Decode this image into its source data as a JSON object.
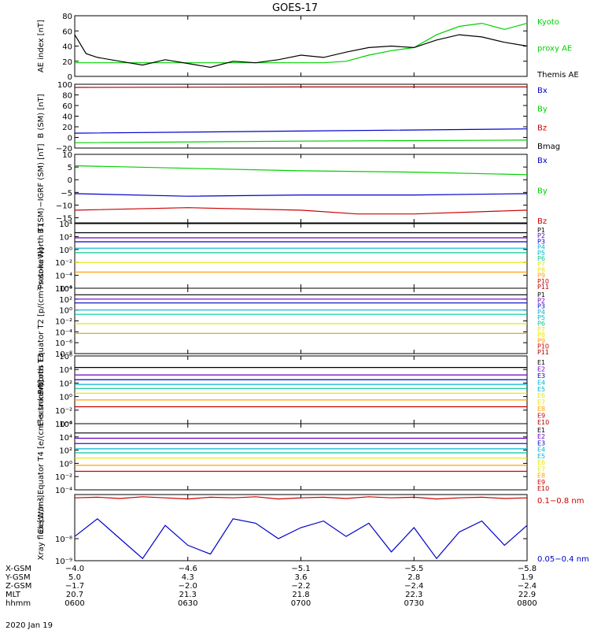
{
  "title": "GOES-17",
  "colors": {
    "black": "#000000",
    "green": "#00d000",
    "red": "#cc0000",
    "blue": "#0000cc",
    "purple": "#6a00c8",
    "cyan": "#00b4d0",
    "teal": "#00c890",
    "yellow": "#e6e600",
    "orange": "#ffa000",
    "darkred": "#aa0000"
  },
  "chart_data": [
    {
      "id": "ae",
      "type": "line",
      "ylabel": "AE index [nT]",
      "ylim": [
        0,
        80
      ],
      "yticks": [
        "0",
        "20",
        "40",
        "60",
        "80"
      ],
      "ytick_values": [
        0,
        20,
        40,
        60,
        80
      ],
      "series": [
        {
          "name": "Kyoto proxy AE",
          "color": "green",
          "x": [
            0,
            0.2,
            0.4,
            0.6,
            0.8,
            1.0,
            1.1,
            1.2,
            1.3,
            1.4,
            1.5,
            1.6,
            1.7,
            1.8,
            1.9,
            2.0
          ],
          "y": [
            18,
            18,
            18,
            18,
            18,
            18,
            18,
            20,
            28,
            34,
            38,
            55,
            66,
            70,
            62,
            70
          ]
        },
        {
          "name": "Themis AE",
          "color": "black",
          "x": [
            0,
            0.05,
            0.1,
            0.2,
            0.3,
            0.4,
            0.5,
            0.6,
            0.7,
            0.8,
            0.9,
            1.0,
            1.1,
            1.2,
            1.3,
            1.4,
            1.5,
            1.6,
            1.7,
            1.8,
            1.9,
            2.0
          ],
          "y": [
            55,
            30,
            25,
            20,
            15,
            22,
            17,
            12,
            20,
            18,
            22,
            28,
            25,
            32,
            38,
            40,
            38,
            48,
            55,
            52,
            45,
            40
          ]
        }
      ],
      "labels": [
        {
          "text": "Kyoto",
          "color": "green"
        },
        {
          "text": "proxy AE",
          "color": "green"
        },
        {
          "text": "Themis AE",
          "color": "black"
        }
      ]
    },
    {
      "id": "bsm",
      "type": "line",
      "ylabel": "B (SM) [nT]",
      "ylim": [
        -20,
        100
      ],
      "yticks": [
        "−20",
        "0",
        "20",
        "40",
        "60",
        "80",
        "100"
      ],
      "ytick_values": [
        -20,
        0,
        20,
        40,
        60,
        80,
        100
      ],
      "series": [
        {
          "name": "Bmag",
          "color": "darkred",
          "x": [
            0,
            1,
            2
          ],
          "y": [
            94,
            95,
            95
          ]
        },
        {
          "name": "Bx",
          "color": "blue",
          "x": [
            0,
            1,
            2
          ],
          "y": [
            8,
            12,
            16
          ]
        },
        {
          "name": "By",
          "color": "green",
          "x": [
            0,
            1,
            2
          ],
          "y": [
            -10,
            -7,
            -5
          ]
        }
      ],
      "labels": [
        {
          "text": "Bx",
          "color": "blue"
        },
        {
          "text": "By",
          "color": "green"
        },
        {
          "text": "Bz",
          "color": "red"
        },
        {
          "text": "Bmag",
          "color": "black"
        }
      ]
    },
    {
      "id": "bigrf",
      "type": "line",
      "ylabel": "B (SM)−IGRF (SM) [nT]",
      "ylim": [
        -17,
        10
      ],
      "yticks": [
        "−15",
        "−10",
        "−5",
        "0",
        "5",
        "10"
      ],
      "ytick_values": [
        -15,
        -10,
        -5,
        0,
        5,
        10
      ],
      "series": [
        {
          "name": "By",
          "color": "green",
          "x": [
            0,
            0.5,
            1.0,
            1.5,
            2.0
          ],
          "y": [
            5.5,
            4.5,
            3.5,
            3.0,
            2.0
          ]
        },
        {
          "name": "Bx",
          "color": "blue",
          "x": [
            0,
            0.5,
            1.0,
            1.5,
            2.0
          ],
          "y": [
            -5.5,
            -6.5,
            -6.0,
            -6.0,
            -5.5
          ]
        },
        {
          "name": "Bz",
          "color": "red",
          "x": [
            0,
            0.5,
            1.0,
            1.25,
            1.5,
            2.0
          ],
          "y": [
            -12,
            -11,
            -12,
            -13.5,
            -13.5,
            -12
          ]
        }
      ],
      "labels": [
        {
          "text": "Bx",
          "color": "blue"
        },
        {
          "text": "By",
          "color": "green"
        },
        {
          "text": "Bz",
          "color": "red"
        }
      ]
    },
    {
      "id": "p_nt1",
      "type": "line",
      "log": true,
      "ylabel": "Protons North T1",
      "ylim_exp": [
        -6,
        4
      ],
      "yticks": [
        "10⁻⁶",
        "10⁻⁴",
        "10⁻²",
        "10⁰",
        "10²",
        "10⁴"
      ],
      "ytick_exps": [
        -6,
        -4,
        -2,
        0,
        2,
        4
      ],
      "series": [
        {
          "name": "P1",
          "color": "black",
          "log10": 2.6
        },
        {
          "name": "P2",
          "color": "purple",
          "log10": 1.8
        },
        {
          "name": "P3",
          "color": "blue",
          "log10": 1.2
        },
        {
          "name": "P4",
          "color": "cyan",
          "log10": 0.2
        },
        {
          "name": "P5",
          "color": "teal",
          "log10": -0.5
        },
        {
          "name": "P6",
          "color": "yellow",
          "log10": -2.0
        },
        {
          "name": "P7",
          "color": "orange",
          "log10": -3.5
        }
      ],
      "labels": [
        {
          "text": "P1",
          "color": "black"
        },
        {
          "text": "P2",
          "color": "purple"
        },
        {
          "text": "P3",
          "color": "blue"
        },
        {
          "text": "P4",
          "color": "cyan"
        },
        {
          "text": "P5",
          "color": "cyan"
        },
        {
          "text": "P6",
          "color": "teal"
        },
        {
          "text": "P7",
          "color": "yellow"
        },
        {
          "text": "P8",
          "color": "yellow"
        },
        {
          "text": "P9",
          "color": "orange"
        },
        {
          "text": "P10",
          "color": "red"
        },
        {
          "text": "P11",
          "color": "darkred"
        }
      ]
    },
    {
      "id": "p_eqt2",
      "type": "line",
      "log": true,
      "ylabel": "Protons Equator T2 [p/(cm²-s-sr-keV)]",
      "ylim_exp": [
        -8,
        4
      ],
      "yticks": [
        "10⁻⁸",
        "10⁻⁶",
        "10⁻⁴",
        "10⁻²",
        "10⁰",
        "10²",
        "10⁴"
      ],
      "ytick_exps": [
        -8,
        -6,
        -4,
        -2,
        0,
        2,
        4
      ],
      "series": [
        {
          "name": "P1",
          "color": "black",
          "log10": 2.8
        },
        {
          "name": "P2",
          "color": "purple",
          "log10": 2.0
        },
        {
          "name": "P3",
          "color": "blue",
          "log10": 1.3
        },
        {
          "name": "P4",
          "color": "cyan",
          "log10": 0.0
        },
        {
          "name": "P5",
          "color": "teal",
          "log10": -0.8
        },
        {
          "name": "P6",
          "color": "yellow",
          "log10": -2.5
        },
        {
          "name": "P7",
          "color": "orange",
          "log10": -4.3
        }
      ],
      "labels": [
        {
          "text": "P1",
          "color": "black"
        },
        {
          "text": "P2",
          "color": "purple"
        },
        {
          "text": "P3",
          "color": "blue"
        },
        {
          "text": "P4",
          "color": "cyan"
        },
        {
          "text": "P5",
          "color": "cyan"
        },
        {
          "text": "P6",
          "color": "teal"
        },
        {
          "text": "P7",
          "color": "yellow"
        },
        {
          "text": "P8",
          "color": "yellow"
        },
        {
          "text": "P9",
          "color": "orange"
        },
        {
          "text": "P10",
          "color": "red"
        },
        {
          "text": "P11",
          "color": "darkred"
        }
      ]
    },
    {
      "id": "e_nt3",
      "type": "line",
      "log": true,
      "ylabel": "Electrons North T3",
      "ylim_exp": [
        -4,
        6
      ],
      "yticks": [
        "10⁻⁴",
        "10⁻²",
        "10⁰",
        "10²",
        "10⁴",
        "10⁶"
      ],
      "ytick_exps": [
        -4,
        -2,
        0,
        2,
        4,
        6
      ],
      "series": [
        {
          "name": "E1",
          "color": "black",
          "log10": 4.3
        },
        {
          "name": "E2",
          "color": "purple",
          "log10": 3.2
        },
        {
          "name": "E3",
          "color": "blue",
          "log10": 2.5
        },
        {
          "name": "E4",
          "color": "cyan",
          "log10": 1.8
        },
        {
          "name": "E5",
          "color": "teal",
          "log10": 1.2
        },
        {
          "name": "E6",
          "color": "yellow",
          "log10": 0.5
        },
        {
          "name": "E7",
          "color": "orange",
          "log10": -0.5
        },
        {
          "name": "E8",
          "color": "red",
          "log10": -1.5
        }
      ],
      "labels": [
        {
          "text": "E1",
          "color": "black"
        },
        {
          "text": "E2",
          "color": "purple"
        },
        {
          "text": "E3",
          "color": "blue"
        },
        {
          "text": "E4",
          "color": "cyan"
        },
        {
          "text": "E5",
          "color": "cyan"
        },
        {
          "text": "E6",
          "color": "yellow"
        },
        {
          "text": "E7",
          "color": "yellow"
        },
        {
          "text": "E8",
          "color": "orange"
        },
        {
          "text": "E9",
          "color": "red"
        },
        {
          "text": "E10",
          "color": "darkred"
        }
      ]
    },
    {
      "id": "e_eqt4",
      "type": "line",
      "log": true,
      "ylabel": "Electrons Equator T4 [e/(cm²-s-sr-keV)]",
      "ylim_exp": [
        -4,
        6
      ],
      "yticks": [
        "10⁻⁴",
        "10⁻²",
        "10⁰",
        "10²",
        "10⁴",
        "10⁶"
      ],
      "ytick_exps": [
        -4,
        -2,
        0,
        2,
        4,
        6
      ],
      "series": [
        {
          "name": "E1",
          "color": "black",
          "log10": 4.6
        },
        {
          "name": "E2",
          "color": "purple",
          "log10": 3.8
        },
        {
          "name": "E3",
          "color": "blue",
          "log10": 3.0
        },
        {
          "name": "E4",
          "color": "cyan",
          "log10": 2.2
        },
        {
          "name": "E5",
          "color": "teal",
          "log10": 1.6
        },
        {
          "name": "E6",
          "color": "yellow",
          "log10": 0.8
        },
        {
          "name": "E7",
          "color": "orange",
          "log10": -0.3
        },
        {
          "name": "E8",
          "color": "red",
          "log10": -1.2
        }
      ],
      "labels": [
        {
          "text": "E1",
          "color": "black"
        },
        {
          "text": "E2",
          "color": "purple"
        },
        {
          "text": "E3",
          "color": "blue"
        },
        {
          "text": "E4",
          "color": "cyan"
        },
        {
          "text": "E5",
          "color": "cyan"
        },
        {
          "text": "E6",
          "color": "yellow"
        },
        {
          "text": "E7",
          "color": "yellow"
        },
        {
          "text": "E8",
          "color": "orange"
        },
        {
          "text": "E9",
          "color": "red"
        },
        {
          "text": "E10",
          "color": "darkred"
        }
      ]
    },
    {
      "id": "xray",
      "type": "line",
      "log": true,
      "ylabel": "Xray flux [W/m²]",
      "ylim_exp": [
        -9,
        -6
      ],
      "yticks": [
        "10⁻⁹",
        "10⁻⁸"
      ],
      "ytick_exps": [
        -9,
        -8
      ],
      "series": [
        {
          "name": "0.1-0.8 nm",
          "color": "red",
          "x": [
            0,
            0.1,
            0.2,
            0.3,
            0.4,
            0.5,
            0.6,
            0.7,
            0.8,
            0.9,
            1.0,
            1.1,
            1.2,
            1.3,
            1.4,
            1.5,
            1.6,
            1.7,
            1.8,
            1.9,
            2.0
          ],
          "log10": [
            -6.15,
            -6.12,
            -6.18,
            -6.1,
            -6.15,
            -6.2,
            -6.12,
            -6.15,
            -6.1,
            -6.2,
            -6.15,
            -6.12,
            -6.18,
            -6.1,
            -6.15,
            -6.12,
            -6.2,
            -6.15,
            -6.12,
            -6.18,
            -6.15
          ]
        },
        {
          "name": "0.05-0.4 nm",
          "color": "blue",
          "x": [
            0,
            0.1,
            0.2,
            0.3,
            0.4,
            0.5,
            0.6,
            0.7,
            0.8,
            0.9,
            1.0,
            1.1,
            1.2,
            1.3,
            1.4,
            1.5,
            1.6,
            1.7,
            1.8,
            1.9,
            2.0
          ],
          "log10": [
            -7.9,
            -7.1,
            -8.0,
            -8.9,
            -7.4,
            -8.3,
            -8.7,
            -7.1,
            -7.3,
            -8.0,
            -7.5,
            -7.2,
            -7.9,
            -7.3,
            -8.6,
            -7.5,
            -8.9,
            -7.7,
            -7.2,
            -8.3,
            -7.4
          ]
        }
      ],
      "labels": [
        {
          "text": "0.1−0.8 nm",
          "color": "red"
        },
        {
          "text": "0.05−0.4 nm",
          "color": "blue"
        }
      ]
    }
  ],
  "xaxis": {
    "range": [
      0,
      2
    ],
    "tick_values": [
      0,
      0.5,
      1.0,
      1.5,
      2.0
    ],
    "rows": [
      {
        "label": "X-GSM",
        "values": [
          "−4.0",
          "−4.6",
          "−5.1",
          "−5.5",
          "−5.8"
        ]
      },
      {
        "label": "Y-GSM",
        "values": [
          "5.0",
          "4.3",
          "3.6",
          "2.8",
          "1.9"
        ]
      },
      {
        "label": "Z-GSM",
        "values": [
          "−1.7",
          "−2.0",
          "−2.2",
          "−2.4",
          "−2.4"
        ]
      },
      {
        "label": "MLT",
        "values": [
          "20.7",
          "21.3",
          "21.8",
          "22.3",
          "22.9"
        ]
      },
      {
        "label": "hhmm",
        "values": [
          "0600",
          "0630",
          "0700",
          "0730",
          "0800"
        ]
      }
    ],
    "date": "2020 Jan 19"
  }
}
